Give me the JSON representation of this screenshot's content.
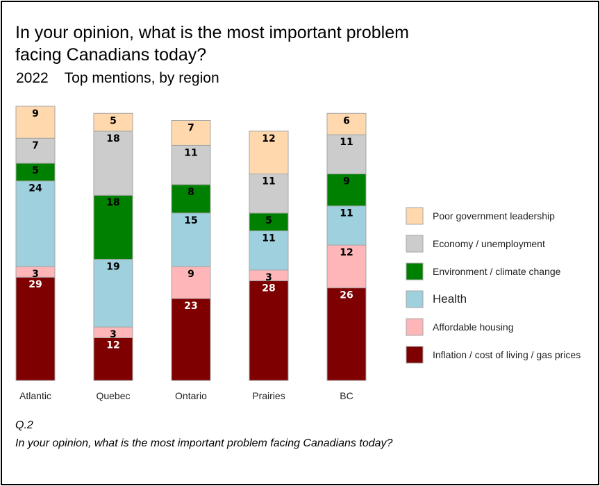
{
  "title": "In your opinion, what is the most important problem facing Canadians today?",
  "subtitle": "2022    Top mentions, by region",
  "footnote": {
    "question_id": "Q.2",
    "question_text": "In your opinion, what is the most important problem facing Canadians today?"
  },
  "chart_data": {
    "type": "bar",
    "stacked": true,
    "categories": [
      "Atlantic",
      "Quebec",
      "Ontario",
      "Prairies",
      "BC"
    ],
    "series": [
      {
        "name": "Inflation / cost of living / gas prices",
        "color": "#7f0000",
        "values": [
          29,
          12,
          23,
          28,
          26
        ]
      },
      {
        "name": "Affordable housing",
        "color": "#ffb6b9",
        "values": [
          3,
          3,
          9,
          3,
          12
        ]
      },
      {
        "name": "Health",
        "color": "#9fd0de",
        "values": [
          24,
          19,
          15,
          11,
          11
        ]
      },
      {
        "name": "Environment / climate change",
        "color": "#008000",
        "values": [
          5,
          18,
          8,
          5,
          9
        ]
      },
      {
        "name": "Economy / unemployment",
        "color": "#cccccc",
        "values": [
          7,
          18,
          11,
          11,
          11
        ]
      },
      {
        "name": "Poor government leadership",
        "color": "#ffd9ad",
        "values": [
          9,
          5,
          7,
          12,
          6
        ]
      }
    ],
    "legend_order": [
      "Poor government leadership",
      "Economy / unemployment",
      "Environment / climate change",
      "Health",
      "Affordable housing",
      "Inflation / cost of living / gas prices"
    ],
    "legend_position": "right",
    "grid": false
  }
}
